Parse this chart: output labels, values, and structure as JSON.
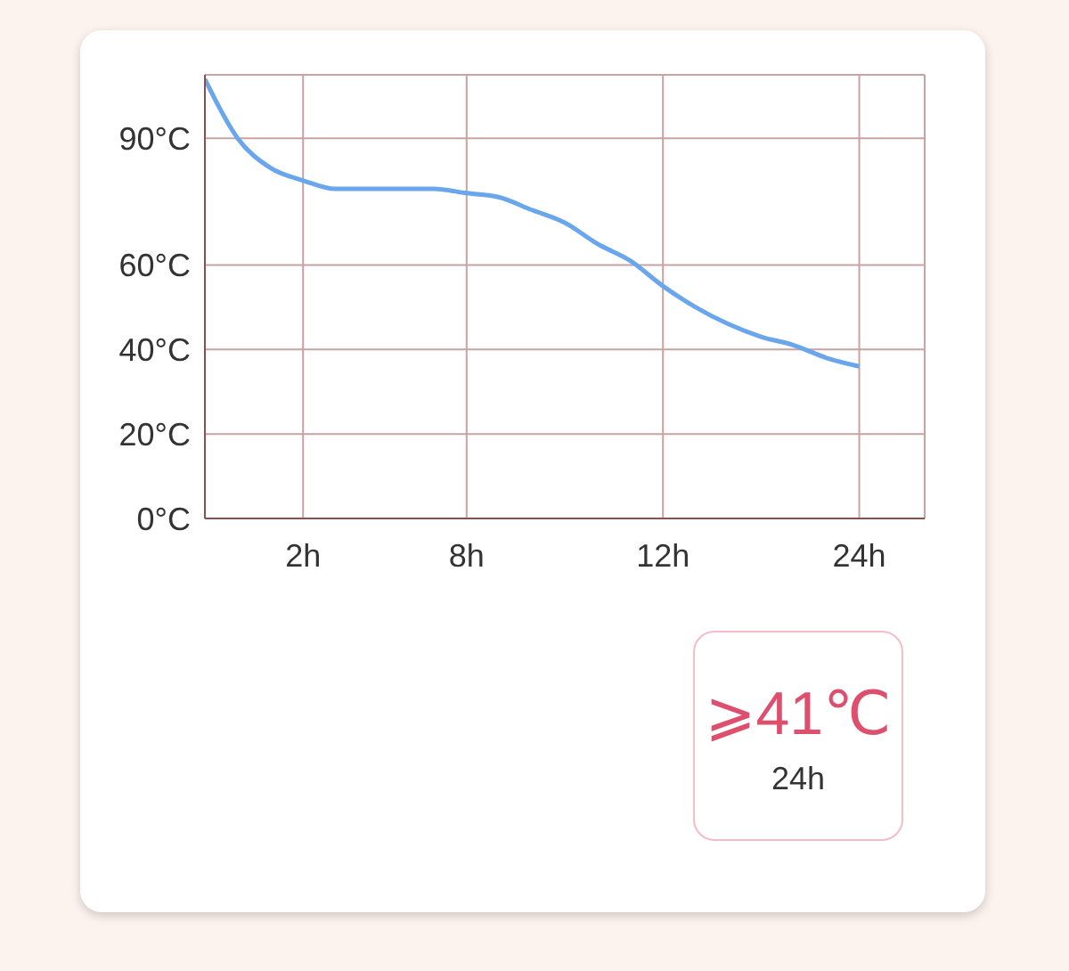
{
  "chart_data": {
    "type": "line",
    "categories": [
      null,
      null,
      null,
      "2h",
      null,
      null,
      null,
      null,
      "8h",
      null,
      null,
      null,
      null,
      null,
      "12h",
      null,
      null,
      null,
      null,
      null,
      "24h",
      null,
      null
    ],
    "series": [
      {
        "color": "#6aa6ec",
        "values": [
          104,
          90,
          83,
          80,
          78,
          78,
          78,
          78,
          77,
          76,
          73,
          70,
          65,
          61,
          55,
          50,
          46,
          43,
          41,
          38,
          36,
          null,
          null
        ]
      }
    ],
    "ylim": [
      0,
      105
    ],
    "yticks": [
      {
        "value": 0,
        "label": "0°C"
      },
      {
        "value": 20,
        "label": "20°C"
      },
      {
        "value": 40,
        "label": "40°C"
      },
      {
        "value": 60,
        "label": "60°C"
      },
      {
        "value": 90,
        "label": "90°C"
      }
    ],
    "grid": true,
    "marker": "none",
    "line_style": "solid",
    "annotations": [
      "⩾41℃",
      "24h"
    ]
  }
}
